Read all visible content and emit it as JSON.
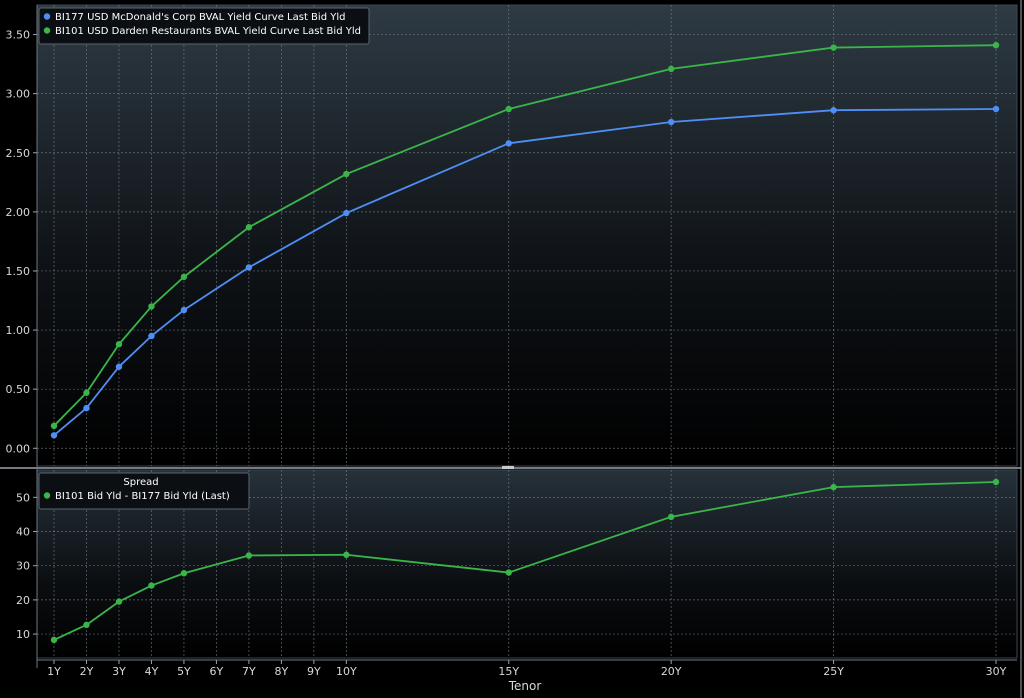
{
  "chart_data": [
    {
      "type": "line",
      "panel": "top",
      "categories": [
        "1Y",
        "2Y",
        "3Y",
        "4Y",
        "5Y",
        "6Y",
        "7Y",
        "8Y",
        "9Y",
        "10Y",
        "15Y",
        "20Y",
        "25Y",
        "30Y"
      ],
      "x_years": [
        1,
        2,
        3,
        4,
        5,
        6,
        7,
        8,
        9,
        10,
        15,
        20,
        25,
        30
      ],
      "ylim": [
        -0.15,
        3.75
      ],
      "yticks": [
        "0.00",
        "0.50",
        "1.00",
        "1.50",
        "2.00",
        "2.50",
        "3.00",
        "3.50"
      ],
      "grid": true,
      "legend_position": "top-left",
      "series": [
        {
          "name": "BI177 USD McDonald's Corp BVAL Yield Curve Last Bid Yld",
          "color": "#4f8ef7",
          "points": [
            [
              1,
              0.11
            ],
            [
              2,
              0.34
            ],
            [
              3,
              0.69
            ],
            [
              4,
              0.95
            ],
            [
              5,
              1.17
            ],
            [
              7,
              1.53
            ],
            [
              10,
              1.99
            ],
            [
              15,
              2.58
            ],
            [
              20,
              2.76
            ],
            [
              25,
              2.86
            ],
            [
              30,
              2.87
            ]
          ]
        },
        {
          "name": "BI101 USD Darden Restaurants BVAL Yield Curve Last Bid Yld",
          "color": "#3ab54a",
          "points": [
            [
              1,
              0.19
            ],
            [
              2,
              0.47
            ],
            [
              3,
              0.88
            ],
            [
              4,
              1.2
            ],
            [
              5,
              1.45
            ],
            [
              7,
              1.87
            ],
            [
              10,
              2.32
            ],
            [
              15,
              2.87
            ],
            [
              20,
              3.21
            ],
            [
              25,
              3.39
            ],
            [
              30,
              3.41
            ]
          ]
        }
      ]
    },
    {
      "type": "line",
      "panel": "bottom",
      "title": "Spread",
      "xlabel": "Tenor",
      "categories": [
        "1Y",
        "2Y",
        "3Y",
        "4Y",
        "5Y",
        "6Y",
        "7Y",
        "8Y",
        "9Y",
        "10Y",
        "15Y",
        "20Y",
        "25Y",
        "30Y"
      ],
      "x_years": [
        1,
        2,
        3,
        4,
        5,
        6,
        7,
        8,
        9,
        10,
        15,
        20,
        25,
        30
      ],
      "ylim": [
        3,
        58
      ],
      "yticks": [
        "10",
        "20",
        "30",
        "40",
        "50"
      ],
      "grid": true,
      "legend_position": "top-left",
      "series": [
        {
          "name": "BI101 Bid Yld - BI177 Bid Yld (Last)",
          "color": "#3ab54a",
          "points": [
            [
              1,
              8.3
            ],
            [
              2,
              12.7
            ],
            [
              3,
              19.5
            ],
            [
              4,
              24.2
            ],
            [
              5,
              27.8
            ],
            [
              7,
              33.0
            ],
            [
              10,
              33.2
            ],
            [
              15,
              28.0
            ],
            [
              20,
              44.3
            ],
            [
              25,
              53.0
            ],
            [
              30,
              54.5
            ]
          ]
        }
      ]
    }
  ]
}
